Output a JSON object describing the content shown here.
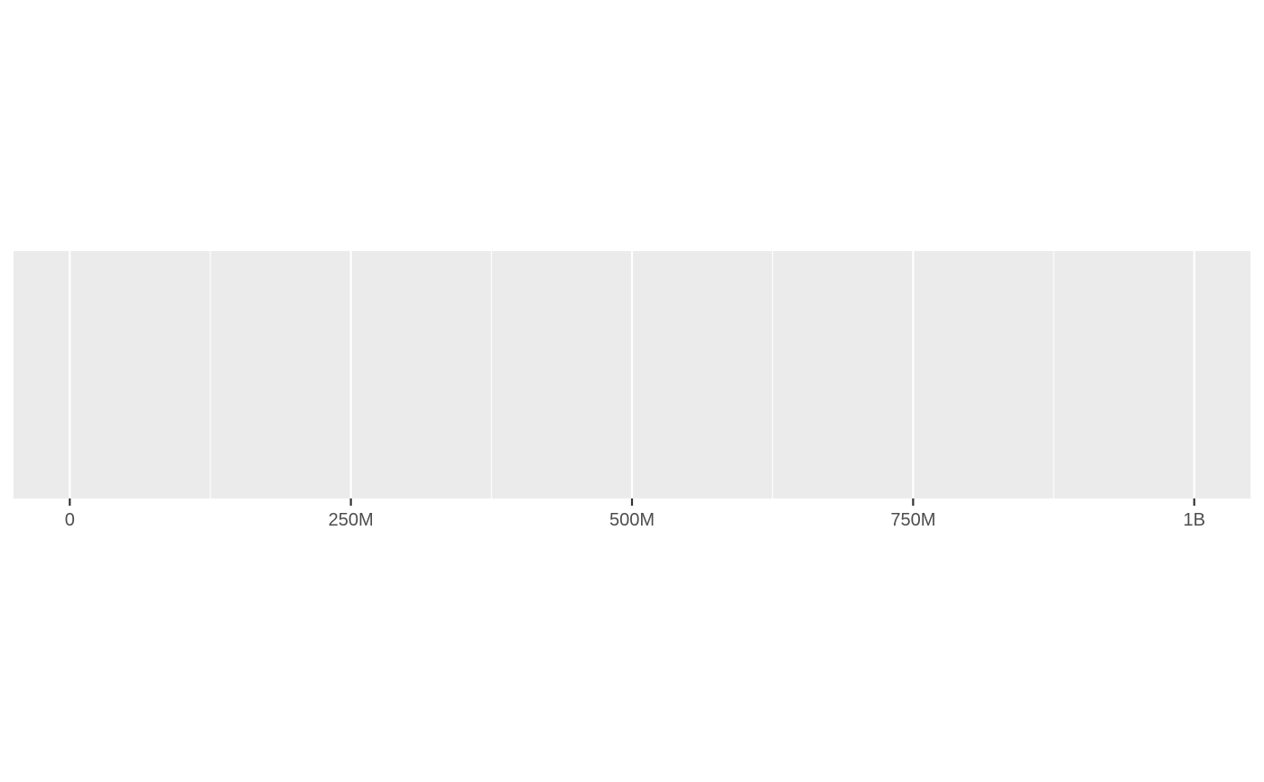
{
  "chart_data": {
    "type": "scatter",
    "title": "",
    "xlabel": "",
    "ylabel": "",
    "xlim": [
      -50000000,
      1050000000
    ],
    "x_ticks": [
      {
        "value": 0,
        "label": "0"
      },
      {
        "value": 250000000,
        "label": "250M"
      },
      {
        "value": 500000000,
        "label": "500M"
      },
      {
        "value": 750000000,
        "label": "750M"
      },
      {
        "value": 1000000000,
        "label": "1B"
      }
    ],
    "x_minor_breaks": [
      125000000,
      375000000,
      625000000,
      875000000
    ],
    "series": [],
    "grid": true,
    "panel_background": "#ebebeb",
    "grid_color": "#ffffff",
    "tick_color": "#333333",
    "tick_label_color": "#4d4d4d"
  }
}
